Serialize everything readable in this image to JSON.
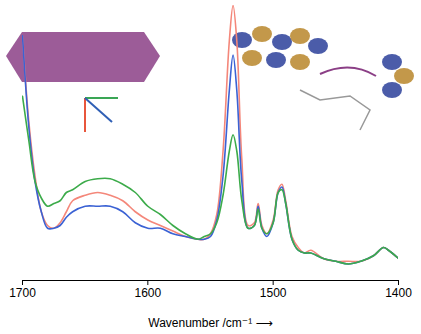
{
  "chart_data": {
    "type": "line",
    "x_label": "Wavenumber /cm⁻¹ ⟶",
    "x": [
      1700,
      1695,
      1690,
      1685,
      1680,
      1675,
      1670,
      1665,
      1660,
      1650,
      1640,
      1630,
      1620,
      1610,
      1600,
      1590,
      1580,
      1570,
      1560,
      1555,
      1550,
      1545,
      1540,
      1535,
      1532,
      1529,
      1525,
      1520,
      1515,
      1512,
      1509,
      1505,
      1500,
      1496,
      1493,
      1490,
      1485,
      1480,
      1475,
      1470,
      1460,
      1450,
      1440,
      1430,
      1420,
      1412,
      1408,
      1400
    ],
    "series": [
      {
        "color": "#f4877a",
        "values": [
          0.89,
          0.58,
          0.38,
          0.25,
          0.2,
          0.19,
          0.21,
          0.25,
          0.29,
          0.31,
          0.32,
          0.31,
          0.29,
          0.25,
          0.22,
          0.2,
          0.18,
          0.16,
          0.15,
          0.15,
          0.17,
          0.24,
          0.47,
          0.87,
          1.0,
          0.87,
          0.44,
          0.2,
          0.21,
          0.28,
          0.2,
          0.17,
          0.22,
          0.33,
          0.35,
          0.29,
          0.16,
          0.12,
          0.1,
          0.11,
          0.08,
          0.07,
          0.07,
          0.07,
          0.09,
          0.12,
          0.11,
          0.08
        ]
      },
      {
        "color": "#3b62d4",
        "values": [
          0.89,
          0.56,
          0.36,
          0.25,
          0.19,
          0.19,
          0.2,
          0.23,
          0.25,
          0.27,
          0.27,
          0.27,
          0.25,
          0.21,
          0.19,
          0.19,
          0.17,
          0.16,
          0.15,
          0.15,
          0.16,
          0.22,
          0.38,
          0.69,
          0.82,
          0.69,
          0.36,
          0.19,
          0.2,
          0.27,
          0.19,
          0.16,
          0.21,
          0.32,
          0.34,
          0.28,
          0.15,
          0.11,
          0.1,
          0.1,
          0.08,
          0.07,
          0.06,
          0.07,
          0.09,
          0.12,
          0.11,
          0.08
        ]
      },
      {
        "color": "#3cab4a",
        "values": [
          0.67,
          0.51,
          0.36,
          0.3,
          0.27,
          0.28,
          0.29,
          0.32,
          0.33,
          0.36,
          0.37,
          0.37,
          0.35,
          0.32,
          0.27,
          0.24,
          0.2,
          0.17,
          0.15,
          0.16,
          0.17,
          0.21,
          0.31,
          0.47,
          0.53,
          0.47,
          0.29,
          0.19,
          0.2,
          0.26,
          0.19,
          0.17,
          0.21,
          0.32,
          0.33,
          0.28,
          0.15,
          0.11,
          0.1,
          0.1,
          0.08,
          0.07,
          0.06,
          0.07,
          0.09,
          0.12,
          0.11,
          0.08
        ]
      }
    ],
    "xlim": [
      1700,
      1400
    ],
    "xticks": [
      1700,
      1600,
      1500,
      1400
    ],
    "ylim": [
      0,
      1
    ],
    "tick_labels": "x",
    "grid": false
  }
}
